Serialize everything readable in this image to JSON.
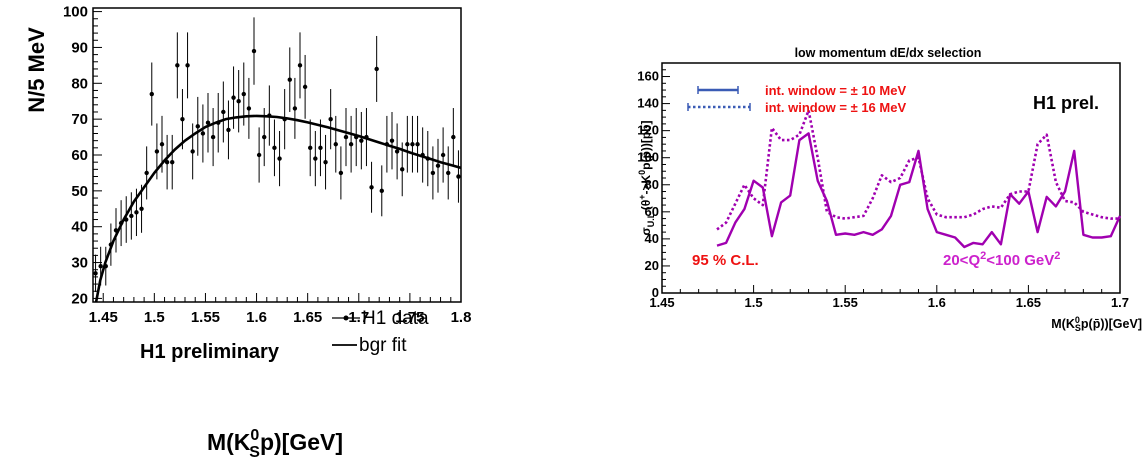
{
  "chart_data": [
    {
      "type": "scatter",
      "title": "",
      "xlabel": "M(K_S^0 p)[GeV]",
      "xlabel_parts": {
        "pre": "M(K",
        "sup": "0",
        "sub": "S",
        "post": "p)[GeV]"
      },
      "ylabel": "N/5 MeV",
      "xlim": [
        1.44,
        1.8
      ],
      "ylim": [
        19,
        101
      ],
      "xticks": [
        "1.45",
        "1.5",
        "1.55",
        "1.6",
        "1.65",
        "1.7",
        "1.75",
        "1.8"
      ],
      "yticks": [
        "20",
        "30",
        "40",
        "50",
        "60",
        "70",
        "80",
        "90",
        "100"
      ],
      "annotation": "H1 preliminary",
      "legend": {
        "placement": "bottom-right",
        "entries": [
          {
            "label": "H1 data",
            "marker": "point-with-errorbar"
          },
          {
            "label": "bgr fit",
            "marker": "line"
          }
        ]
      },
      "series": [
        {
          "name": "H1 data",
          "kind": "points",
          "color": "#000000",
          "x": [
            1.4425,
            1.4475,
            1.4525,
            1.4575,
            1.4625,
            1.4675,
            1.4725,
            1.4775,
            1.4825,
            1.4875,
            1.4925,
            1.4975,
            1.5025,
            1.5075,
            1.5125,
            1.5175,
            1.5225,
            1.5275,
            1.5325,
            1.5375,
            1.5425,
            1.5475,
            1.5525,
            1.5575,
            1.5625,
            1.5675,
            1.5725,
            1.5775,
            1.5825,
            1.5875,
            1.5925,
            1.5975,
            1.6025,
            1.6075,
            1.6125,
            1.6175,
            1.6225,
            1.6275,
            1.6325,
            1.6375,
            1.6425,
            1.6475,
            1.6525,
            1.6575,
            1.6625,
            1.6675,
            1.6725,
            1.6775,
            1.6825,
            1.6875,
            1.6925,
            1.6975,
            1.7025,
            1.7075,
            1.7125,
            1.7175,
            1.7225,
            1.7275,
            1.7325,
            1.7375,
            1.7425,
            1.7475,
            1.7525,
            1.7575,
            1.7625,
            1.7675,
            1.7725,
            1.7775,
            1.7825,
            1.7875,
            1.7925,
            1.7975
          ],
          "y": [
            27,
            29,
            29,
            35,
            39,
            41,
            42,
            43,
            44,
            45,
            55,
            77,
            61,
            63,
            58,
            58,
            85,
            70,
            85,
            61,
            68,
            66,
            69,
            65,
            69,
            72,
            67,
            76,
            75,
            77,
            73,
            89,
            60,
            65,
            71,
            62,
            59,
            70,
            81,
            73,
            85,
            79,
            62,
            59,
            62,
            58,
            70,
            63,
            55,
            65,
            63,
            65,
            64,
            65,
            51,
            84,
            50,
            63,
            64,
            61,
            56,
            63,
            63,
            63,
            60,
            59,
            55,
            57,
            60,
            55,
            65,
            54
          ],
          "err": [
            5.2,
            5.4,
            5.4,
            5.9,
            6.2,
            6.4,
            6.5,
            6.6,
            6.6,
            6.7,
            7.4,
            8.8,
            7.8,
            7.9,
            7.6,
            7.6,
            9.2,
            8.4,
            9.2,
            7.8,
            8.2,
            8.1,
            8.3,
            8.1,
            8.3,
            8.5,
            8.2,
            8.7,
            8.7,
            8.8,
            8.5,
            9.4,
            7.7,
            8.1,
            8.4,
            7.9,
            7.7,
            8.4,
            9.0,
            8.5,
            9.2,
            8.9,
            7.9,
            7.7,
            7.9,
            7.6,
            8.4,
            7.9,
            7.4,
            8.1,
            7.9,
            8.1,
            8.0,
            8.1,
            7.1,
            9.2,
            7.1,
            7.9,
            8.0,
            7.8,
            7.5,
            7.9,
            7.9,
            7.9,
            7.7,
            7.7,
            7.4,
            7.5,
            7.7,
            7.4,
            8.1,
            7.3
          ]
        },
        {
          "name": "bgr fit",
          "kind": "line",
          "color": "#000000",
          "x": [
            1.443,
            1.447,
            1.452,
            1.46,
            1.47,
            1.48,
            1.49,
            1.5,
            1.51,
            1.52,
            1.53,
            1.54,
            1.55,
            1.56,
            1.57,
            1.58,
            1.59,
            1.6,
            1.61,
            1.62,
            1.63,
            1.64,
            1.65,
            1.66,
            1.67,
            1.68,
            1.69,
            1.7,
            1.71,
            1.72,
            1.73,
            1.74,
            1.75,
            1.76,
            1.77,
            1.78,
            1.79,
            1.8
          ],
          "y": [
            19,
            25,
            30,
            36,
            42,
            47,
            51,
            55,
            58.5,
            61.5,
            64,
            66,
            67.8,
            69,
            70,
            70.5,
            70.8,
            70.9,
            70.8,
            70.6,
            70.2,
            69.7,
            69.1,
            68.4,
            67.7,
            66.9,
            66.1,
            65.3,
            64.4,
            63.5,
            62.6,
            61.7,
            60.7,
            59.8,
            58.9,
            58,
            57.2,
            56.4
          ]
        }
      ]
    },
    {
      "type": "line",
      "title": "low momentum dE/dx selection",
      "xlabel": "M(K_S^0 p(p̄))[GeV]",
      "xlabel_parts": {
        "pre": "M(K",
        "sup": "0",
        "sub": "S",
        "post": "p(p̄))[GeV]"
      },
      "ylabel": "σ_U.L.(θ+->K^0 p(p̄))[pb]",
      "ylabel_parts": {
        "sigma": "σ",
        "sub": "U.L.",
        "open": "(θ",
        "sup1": "+",
        "mid": "->K",
        "sup2": "0",
        "close": "p(p̄))[pb]"
      },
      "xlim": [
        1.45,
        1.7
      ],
      "ylim": [
        0,
        170
      ],
      "xticks": [
        "1.45",
        "1.5",
        "1.55",
        "1.6",
        "1.65",
        "1.7"
      ],
      "yticks": [
        "0",
        "20",
        "40",
        "60",
        "80",
        "100",
        "120",
        "140",
        "160"
      ],
      "annotations": {
        "tag": "H1 prel.",
        "cl": "95 % C.L.",
        "q2_pre": "20<Q",
        "q2_sup": "2",
        "q2_mid": "<100 GeV",
        "q2_sup2": "2"
      },
      "legend": {
        "placement": "top-left",
        "entries": [
          {
            "label": "int. window = ± 10 MeV",
            "style": "solid",
            "color": "#3a5bb5"
          },
          {
            "label": "int. window = ± 16 MeV",
            "style": "dotted",
            "color": "#3a5bb5"
          }
        ]
      },
      "label_color": "#ee1111",
      "annotation_color": "#cc22cc",
      "series": [
        {
          "name": "int. window = ± 10 MeV",
          "style": "solid",
          "color": "#a000b0",
          "x": [
            1.48,
            1.485,
            1.49,
            1.495,
            1.5,
            1.505,
            1.51,
            1.515,
            1.52,
            1.525,
            1.53,
            1.535,
            1.54,
            1.545,
            1.55,
            1.555,
            1.56,
            1.565,
            1.57,
            1.575,
            1.58,
            1.585,
            1.59,
            1.595,
            1.6,
            1.605,
            1.61,
            1.615,
            1.62,
            1.625,
            1.63,
            1.635,
            1.64,
            1.645,
            1.65,
            1.655,
            1.66,
            1.665,
            1.67,
            1.675,
            1.68,
            1.685,
            1.69,
            1.695,
            1.7
          ],
          "y": [
            35,
            37,
            52,
            62,
            83,
            78,
            42,
            67,
            72,
            113,
            118,
            83,
            68,
            43,
            44,
            43,
            45,
            43,
            47,
            57,
            80,
            82,
            105,
            62,
            45,
            43,
            41,
            34,
            37,
            36,
            45,
            36,
            73,
            66,
            75,
            45,
            71,
            64,
            75,
            105,
            43,
            41,
            41,
            42,
            57
          ]
        },
        {
          "name": "int. window = ± 16 MeV",
          "style": "dotted",
          "color": "#a000b0",
          "x": [
            1.48,
            1.485,
            1.49,
            1.495,
            1.5,
            1.505,
            1.51,
            1.515,
            1.52,
            1.525,
            1.53,
            1.535,
            1.54,
            1.545,
            1.55,
            1.555,
            1.56,
            1.565,
            1.57,
            1.575,
            1.58,
            1.585,
            1.59,
            1.595,
            1.6,
            1.605,
            1.61,
            1.615,
            1.62,
            1.625,
            1.63,
            1.635,
            1.64,
            1.645,
            1.65,
            1.655,
            1.66,
            1.665,
            1.67,
            1.675,
            1.68,
            1.685,
            1.69,
            1.695,
            1.7
          ],
          "y": [
            47,
            52,
            66,
            80,
            70,
            65,
            122,
            113,
            113,
            117,
            135,
            100,
            60,
            56,
            55,
            56,
            57,
            70,
            87,
            82,
            85,
            98,
            100,
            70,
            58,
            56,
            56,
            56,
            58,
            62,
            64,
            63,
            73,
            75,
            75,
            110,
            117,
            82,
            68,
            67,
            60,
            58,
            56,
            55,
            55
          ]
        }
      ]
    }
  ]
}
